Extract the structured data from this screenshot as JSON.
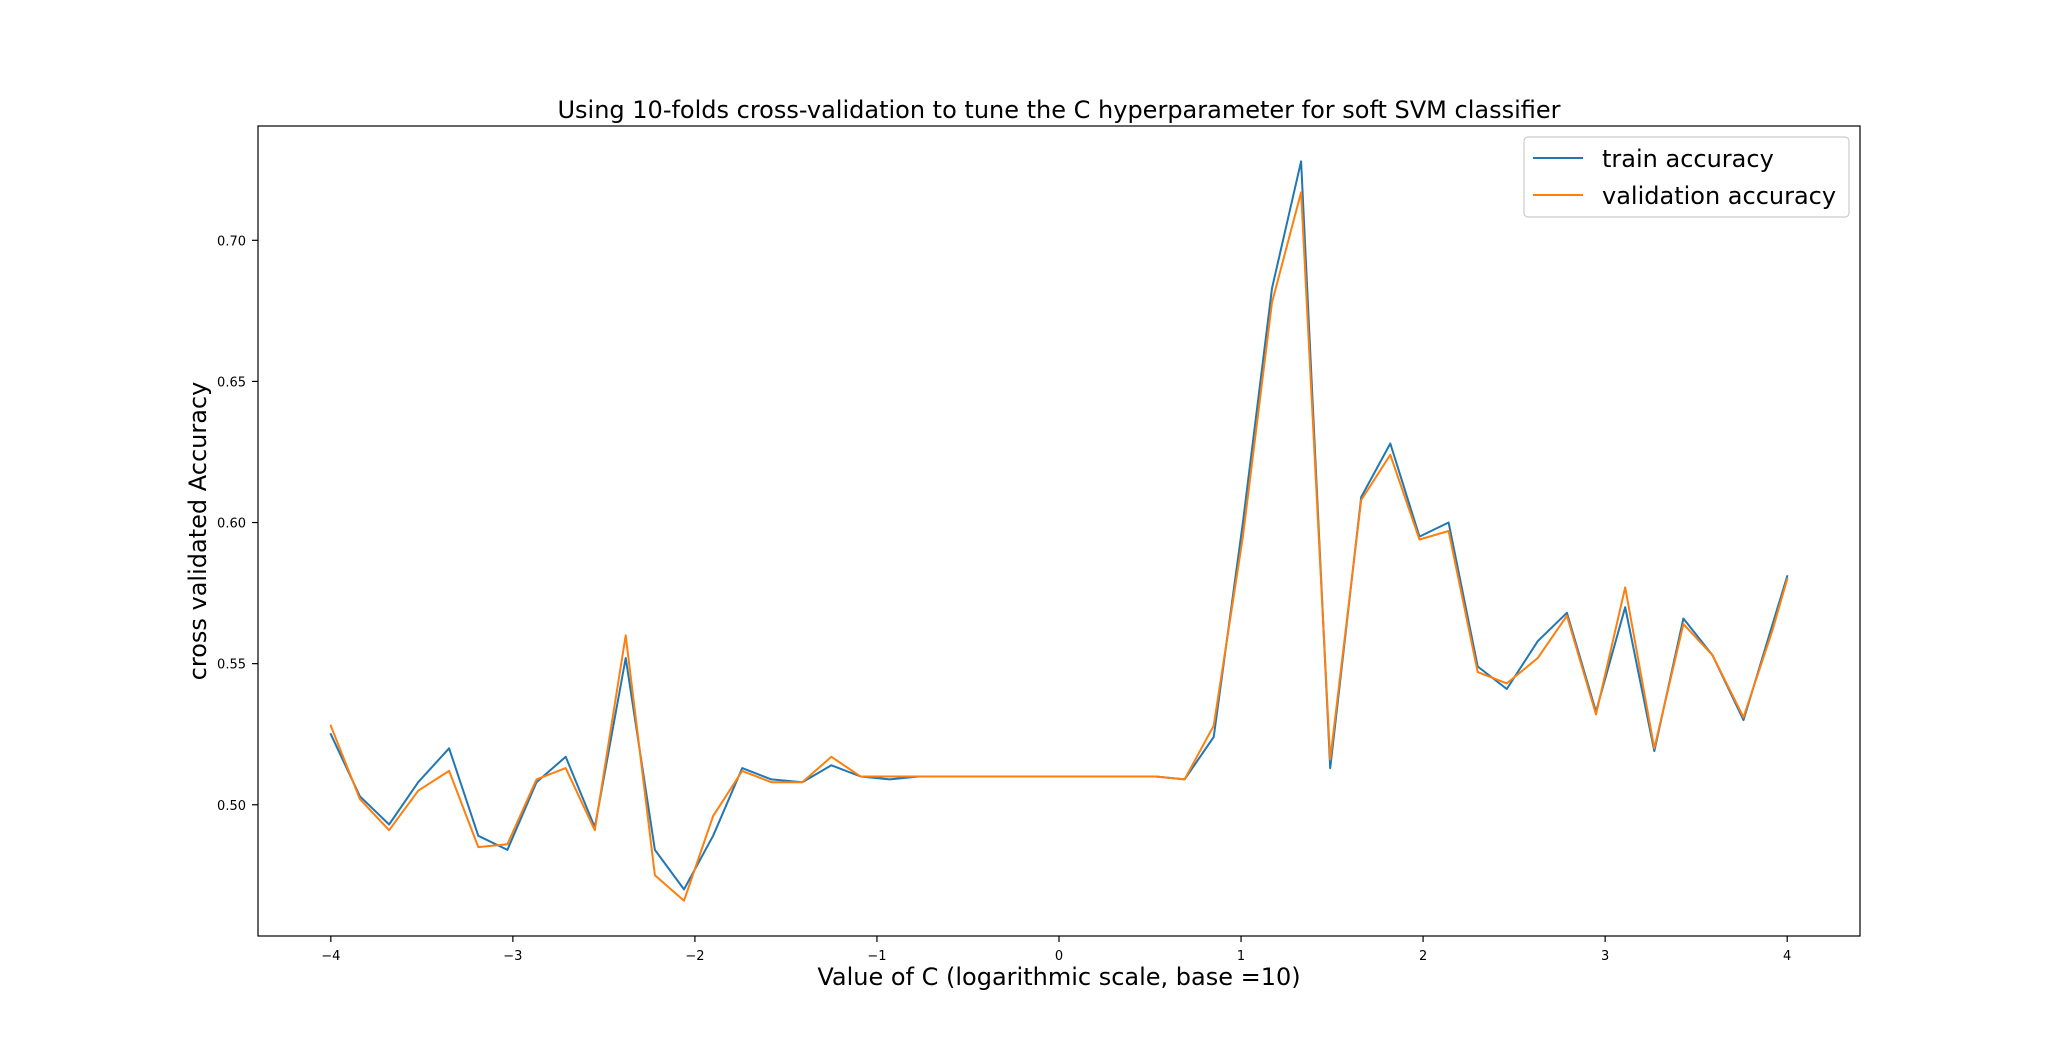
{
  "chart_data": {
    "type": "line",
    "title": "Using 10-folds cross-validation to tune the C hyperparameter for soft SVM classifier",
    "xlabel": "Value of C (logarithmic scale, base =10)",
    "ylabel": "cross validated Accuracy",
    "xlim": [
      -4.4,
      4.4
    ],
    "ylim": [
      0.4535,
      0.7405
    ],
    "xticks": [
      -4,
      -3,
      -2,
      -1,
      0,
      1,
      2,
      3,
      4
    ],
    "xtick_labels": [
      "−4",
      "−3",
      "−2",
      "−1",
      "0",
      "1",
      "2",
      "3",
      "4"
    ],
    "yticks": [
      0.5,
      0.55,
      0.6,
      0.65,
      0.7
    ],
    "ytick_labels": [
      "0.50",
      "0.55",
      "0.60",
      "0.65",
      "0.70"
    ],
    "grid": false,
    "legend_position": "top-right",
    "x": [
      -4.0,
      -3.84,
      -3.68,
      -3.52,
      -3.35,
      -3.19,
      -3.03,
      -2.87,
      -2.71,
      -2.55,
      -2.38,
      -2.22,
      -2.06,
      -1.9,
      -1.74,
      -1.58,
      -1.41,
      -1.25,
      -1.09,
      -0.93,
      -0.77,
      -0.61,
      -0.44,
      -0.28,
      -0.12,
      0.04,
      0.2,
      0.36,
      0.53,
      0.69,
      0.85,
      1.01,
      1.17,
      1.33,
      1.49,
      1.66,
      1.82,
      1.98,
      2.14,
      2.3,
      2.46,
      2.63,
      2.79,
      2.95,
      3.11,
      3.27,
      3.43,
      3.59,
      3.76,
      3.92,
      4.0
    ],
    "series": [
      {
        "name": "train accuracy",
        "color": "#1f77b4",
        "values": [
          0.525,
          0.503,
          0.493,
          0.508,
          0.52,
          0.489,
          0.484,
          0.508,
          0.517,
          0.492,
          0.552,
          0.484,
          0.47,
          0.489,
          0.513,
          0.509,
          0.508,
          0.514,
          0.51,
          0.509,
          0.51,
          0.51,
          0.51,
          0.51,
          0.51,
          0.51,
          0.51,
          0.51,
          0.51,
          0.509,
          0.524,
          0.6,
          0.683,
          0.728,
          0.513,
          0.609,
          0.628,
          0.595,
          0.6,
          0.549,
          0.541,
          0.558,
          0.568,
          0.533,
          0.57,
          0.519,
          0.566,
          0.553,
          0.53,
          0.564,
          0.581
        ]
      },
      {
        "name": "validation accuracy",
        "color": "#ff7f0e",
        "values": [
          0.528,
          0.502,
          0.491,
          0.505,
          0.512,
          0.485,
          0.486,
          0.509,
          0.513,
          0.491,
          0.56,
          0.475,
          0.466,
          0.496,
          0.512,
          0.508,
          0.508,
          0.517,
          0.51,
          0.51,
          0.51,
          0.51,
          0.51,
          0.51,
          0.51,
          0.51,
          0.51,
          0.51,
          0.51,
          0.509,
          0.528,
          0.595,
          0.678,
          0.717,
          0.516,
          0.608,
          0.624,
          0.594,
          0.597,
          0.547,
          0.543,
          0.552,
          0.567,
          0.532,
          0.577,
          0.52,
          0.564,
          0.553,
          0.531,
          0.562,
          0.58
        ]
      }
    ]
  }
}
